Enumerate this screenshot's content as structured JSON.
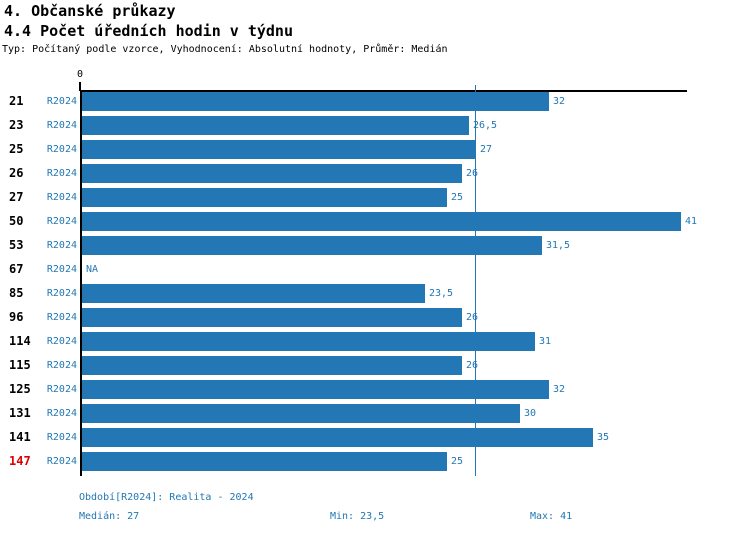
{
  "header": {
    "title1": "4. Občanské průkazy",
    "title2": "4.4 Počet úředních hodin v týdnu",
    "subtitle": "Typ: Počítaný podle vzorce, Vyhodnocení: Absolutní hodnoty, Průměr: Medián"
  },
  "colors": {
    "bar": "#2277b4",
    "blue_text": "#2277b4",
    "red_text": "#dd0000",
    "axis": "#000000"
  },
  "chart_data": {
    "type": "bar",
    "orientation": "horizontal",
    "title": "4.4 Počet úředních hodin v týdnu",
    "series_label": "R2024",
    "x_origin_label": "0",
    "xlim": [
      0,
      41.5
    ],
    "grid": "off",
    "median_reference_line": 27,
    "na_text": "NA",
    "categories": [
      "21",
      "23",
      "25",
      "26",
      "27",
      "50",
      "53",
      "67",
      "85",
      "96",
      "114",
      "115",
      "125",
      "131",
      "141",
      "147"
    ],
    "values": [
      32,
      26.5,
      27,
      26,
      25,
      41,
      31.5,
      null,
      23.5,
      26,
      31,
      26,
      32,
      30,
      35,
      25
    ],
    "value_labels": [
      "32",
      "26,5",
      "27",
      "26",
      "25",
      "41",
      "31,5",
      "NA",
      "23,5",
      "26",
      "31",
      "26",
      "32",
      "30",
      "35",
      "25"
    ],
    "highlighted_red_categories": [
      "147"
    ]
  },
  "footer": {
    "period": "Období[R2024]: Realita - 2024",
    "median": "Medián: 27",
    "min": "Min: 23,5",
    "max": "Max: 41"
  }
}
